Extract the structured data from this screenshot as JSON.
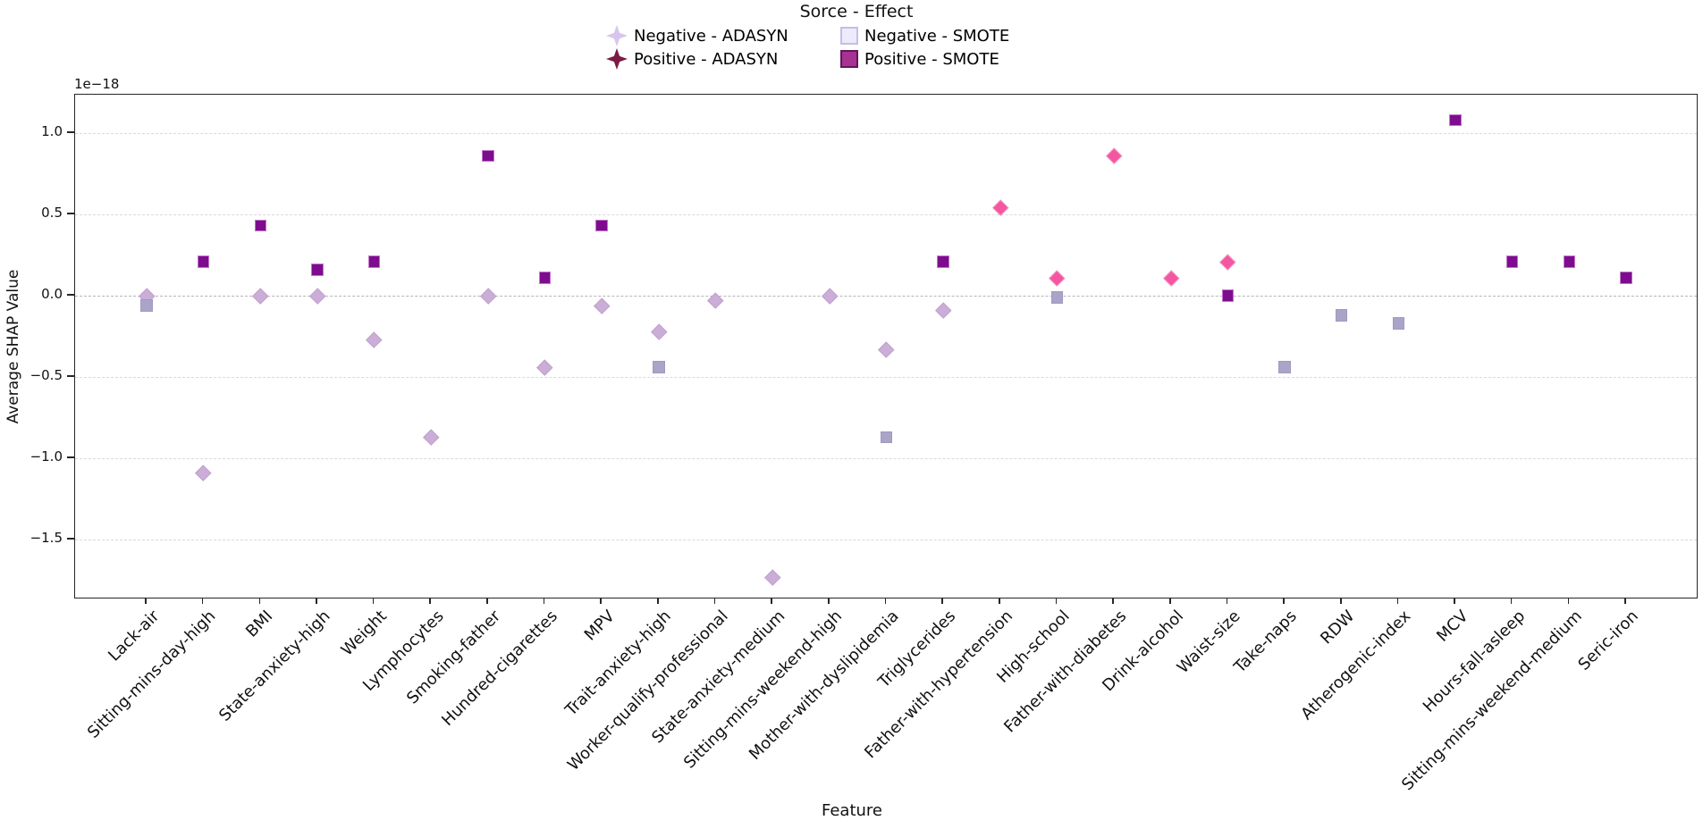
{
  "legend": {
    "title": "Sorce - Effect",
    "entries": [
      {
        "label": "Negative - ADASYN",
        "marker": "sparkle",
        "fill": "#d8c5ec",
        "edge": "#c5abdf"
      },
      {
        "label": "Negative - SMOTE",
        "marker": "square",
        "fill": "#edeafb",
        "edge": "#c6bde8"
      },
      {
        "label": "Positive - ADASYN",
        "marker": "sparkle",
        "fill": "#7b1a45",
        "edge": "#7b1a45"
      },
      {
        "label": "Positive - SMOTE",
        "marker": "square",
        "fill": "#a63394",
        "edge": "#64155a"
      }
    ]
  },
  "chart_data": {
    "type": "scatter",
    "title": "",
    "xlabel": "Feature",
    "ylabel": "Average SHAP Value",
    "offset_text": "1e−18",
    "ylim": [
      -1.87,
      1.24
    ],
    "grid": "horizontal-dashed",
    "legend_position": "top-center",
    "yticks": [
      1.0,
      0.5,
      0.0,
      -0.5,
      -1.0,
      -1.5
    ],
    "ytick_labels": [
      "1.0",
      "0.5",
      "0.0",
      "−0.5",
      "−1.0",
      "−1.5"
    ],
    "categories": [
      "Lack-air",
      "Sitting-mins-day-high",
      "BMI",
      "State-anxiety-high",
      "Weight",
      "Lymphocytes",
      "Smoking-father",
      "Hundred-cigarettes",
      "MPV",
      "Trait-anxiety-high",
      "Worker-qualify-professional",
      "State-anxiety-medium",
      "Sitting-mins-weekend-high",
      "Mother-with-dyslipidemia",
      "Triglycerides",
      "Father-with-hypertension",
      "High-school",
      "Father-with-diabetes",
      "Drink-alcohol",
      "Waist-size",
      "Take-naps",
      "RDW",
      "Atherogenic-index",
      "MCV",
      "Hours-fall-asleep",
      "Sitting-mins-weekend-medium",
      "Seric-iron"
    ],
    "series": [
      {
        "name": "Negative - ADASYN",
        "marker": "diamond",
        "fill": "#cbaed7",
        "edge": "#c09fce",
        "points": [
          {
            "x": "Lack-air",
            "y": 0.0
          },
          {
            "x": "Sitting-mins-day-high",
            "y": -1.09
          },
          {
            "x": "BMI",
            "y": 0.0
          },
          {
            "x": "State-anxiety-high",
            "y": 0.0
          },
          {
            "x": "Weight",
            "y": -0.27
          },
          {
            "x": "Lymphocytes",
            "y": -0.87
          },
          {
            "x": "Smoking-father",
            "y": 0.0
          },
          {
            "x": "Hundred-cigarettes",
            "y": -0.44
          },
          {
            "x": "MPV",
            "y": -0.06
          },
          {
            "x": "Trait-anxiety-high",
            "y": -0.22
          },
          {
            "x": "Worker-qualify-professional",
            "y": -0.03
          },
          {
            "x": "State-anxiety-medium",
            "y": -1.73
          },
          {
            "x": "Sitting-mins-weekend-high",
            "y": 0.0
          },
          {
            "x": "Mother-with-dyslipidemia",
            "y": -0.33
          },
          {
            "x": "Triglycerides",
            "y": -0.09
          }
        ]
      },
      {
        "name": "Positive - ADASYN",
        "marker": "diamond",
        "fill": "#f4569f",
        "edge": "#f592c2",
        "points": [
          {
            "x": "Father-with-hypertension",
            "y": 0.54
          },
          {
            "x": "High-school",
            "y": 0.11
          },
          {
            "x": "Father-with-diabetes",
            "y": 0.86
          },
          {
            "x": "Drink-alcohol",
            "y": 0.11
          },
          {
            "x": "Waist-size",
            "y": 0.21
          }
        ]
      },
      {
        "name": "Negative - SMOTE",
        "marker": "square",
        "fill": "#a9a5c8",
        "edge": "#9f99c1",
        "points": [
          {
            "x": "Lack-air",
            "y": -0.06
          },
          {
            "x": "Trait-anxiety-high",
            "y": -0.44
          },
          {
            "x": "Mother-with-dyslipidemia",
            "y": -0.87
          },
          {
            "x": "High-school",
            "y": -0.01
          },
          {
            "x": "Take-naps",
            "y": -0.44
          },
          {
            "x": "RDW",
            "y": -0.12
          },
          {
            "x": "Atherogenic-index",
            "y": -0.17
          }
        ]
      },
      {
        "name": "Positive - SMOTE",
        "marker": "square",
        "fill": "#7e0c8e",
        "edge": "#c176ca",
        "points": [
          {
            "x": "Sitting-mins-day-high",
            "y": 0.21
          },
          {
            "x": "BMI",
            "y": 0.43
          },
          {
            "x": "State-anxiety-high",
            "y": 0.16
          },
          {
            "x": "Weight",
            "y": 0.21
          },
          {
            "x": "Smoking-father",
            "y": 0.86
          },
          {
            "x": "Hundred-cigarettes",
            "y": 0.11
          },
          {
            "x": "MPV",
            "y": 0.43
          },
          {
            "x": "Triglycerides",
            "y": 0.21
          },
          {
            "x": "Waist-size",
            "y": 0.0
          },
          {
            "x": "MCV",
            "y": 1.08
          },
          {
            "x": "Hours-fall-asleep",
            "y": 0.21
          },
          {
            "x": "Sitting-mins-weekend-medium",
            "y": 0.21
          },
          {
            "x": "Seric-iron",
            "y": 0.11
          }
        ]
      }
    ]
  }
}
